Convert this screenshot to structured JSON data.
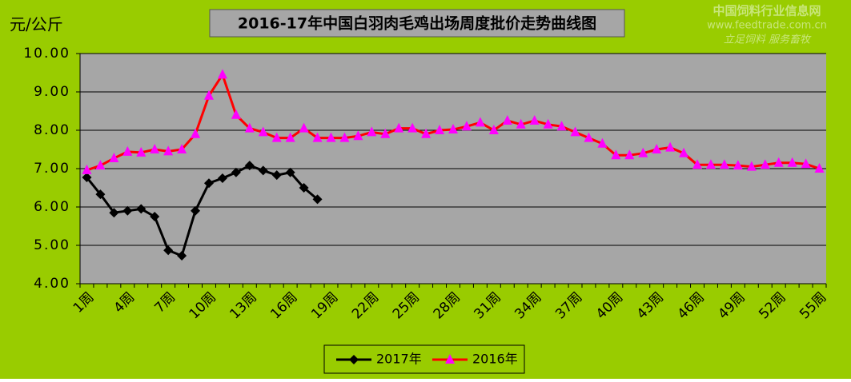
{
  "chart_data": {
    "type": "line",
    "title": "2016-17年中国白羽肉毛鸡出场周度批价走势曲线图",
    "y_label": "元/公斤",
    "categories": [
      "1周",
      null,
      null,
      "4周",
      null,
      null,
      "7周",
      null,
      null,
      "10周",
      null,
      null,
      "13周",
      null,
      null,
      "16周",
      null,
      null,
      "19周",
      null,
      null,
      "22周",
      null,
      null,
      "25周",
      null,
      null,
      "28周",
      null,
      null,
      "31周",
      null,
      null,
      "34周",
      null,
      null,
      "37周",
      null,
      null,
      "40周",
      null,
      null,
      "43周",
      null,
      null,
      "46周",
      null,
      null,
      "49周",
      null,
      null,
      "52周",
      null,
      null,
      "55周"
    ],
    "series": [
      {
        "name": "2017年",
        "color": "#000000",
        "marker": "diamond",
        "values": [
          6.77,
          6.33,
          5.85,
          5.9,
          5.95,
          5.75,
          4.87,
          4.73,
          5.9,
          6.62,
          6.75,
          6.9,
          7.08,
          6.95,
          6.83,
          6.9,
          6.5,
          6.2,
          null,
          null,
          null,
          null,
          null,
          null,
          null,
          null,
          null,
          null,
          null,
          null,
          null,
          null,
          null,
          null,
          null,
          null,
          null,
          null,
          null,
          null,
          null,
          null,
          null,
          null,
          null,
          null,
          null,
          null,
          null,
          null,
          null,
          null,
          null,
          null,
          null
        ]
      },
      {
        "name": "2016年",
        "color": "#ff0000",
        "marker_color": "#ff00ff",
        "marker": "triangle",
        "values": [
          6.96,
          7.08,
          7.27,
          7.44,
          7.42,
          7.5,
          7.45,
          7.5,
          7.9,
          8.9,
          9.45,
          8.4,
          8.05,
          7.95,
          7.8,
          7.8,
          8.05,
          7.8,
          7.8,
          7.8,
          7.85,
          7.95,
          7.9,
          8.05,
          8.05,
          7.9,
          8.0,
          8.02,
          8.1,
          8.2,
          8.0,
          8.25,
          8.15,
          8.25,
          8.15,
          8.1,
          7.95,
          7.8,
          7.65,
          7.35,
          7.35,
          7.4,
          7.5,
          7.55,
          7.4,
          7.1,
          7.1,
          7.1,
          7.08,
          7.05,
          7.1,
          7.15,
          7.15,
          7.12,
          7.0
        ]
      }
    ],
    "ylim": [
      4,
      10
    ],
    "yticks": [
      {
        "value": 4,
        "label": "4.00"
      },
      {
        "value": 5,
        "label": "5.00"
      },
      {
        "value": 6,
        "label": "6.00"
      },
      {
        "value": 7,
        "label": "7.00"
      },
      {
        "value": 8,
        "label": "8.00"
      },
      {
        "value": 9,
        "label": "9.00"
      },
      {
        "value": 10,
        "label": "10.00"
      }
    ],
    "grid": true,
    "legend": "bottom"
  },
  "watermark": {
    "name": "中国饲料行业信息网",
    "url": "www.feedtrade.com.cn",
    "slogan": "立足饲料   服务畜牧"
  }
}
